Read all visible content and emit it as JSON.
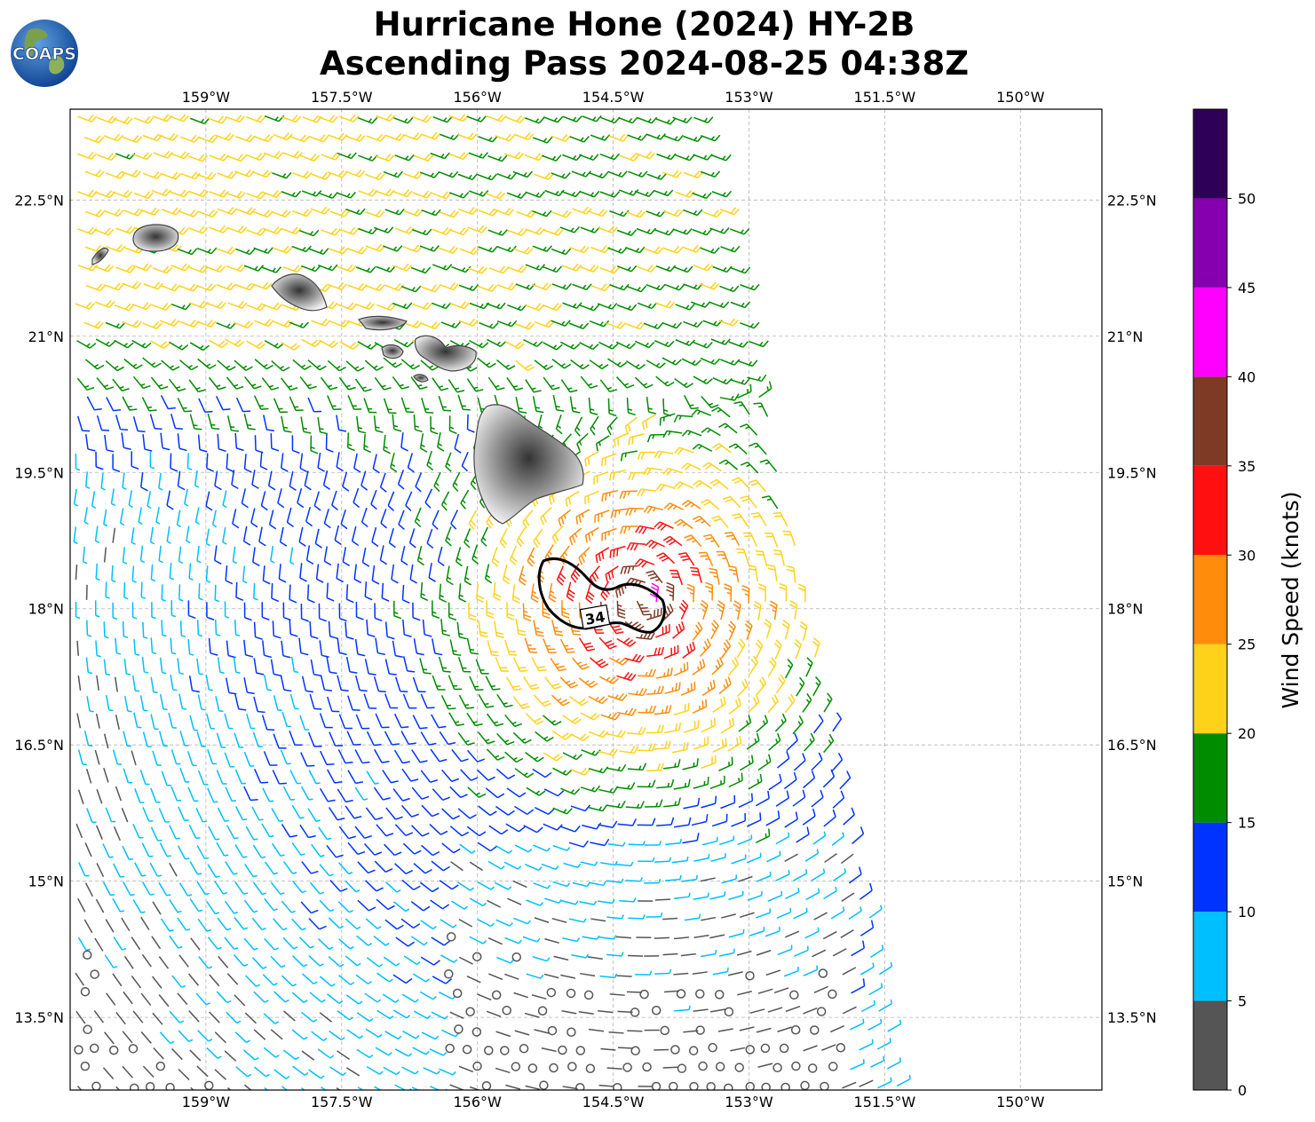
{
  "title": {
    "line1": "Hurricane Hone (2024) HY-2B",
    "line2": "Ascending Pass 2024-08-25 04:38Z"
  },
  "logo": {
    "text": "COAPS"
  },
  "map": {
    "lon_ticks": [
      "159°W",
      "157.5°W",
      "156°W",
      "154.5°W",
      "153°W",
      "151.5°W",
      "150°W"
    ],
    "lat_ticks": [
      "22.5°N",
      "21°N",
      "19.5°N",
      "18°N",
      "16.5°N",
      "15°N",
      "13.5°N"
    ],
    "lon_range": [
      -160.5,
      -149.1
    ],
    "lat_range": [
      12.7,
      23.5
    ],
    "storm_center": {
      "lon": -154.2,
      "lat": 18.1
    },
    "contour_label": "34",
    "gridlines": true
  },
  "colorbar": {
    "label": "Wind Speed (knots)",
    "ticks": [
      "0",
      "5",
      "10",
      "15",
      "20",
      "25",
      "30",
      "35",
      "40",
      "45",
      "50"
    ],
    "colors": [
      "#555555",
      "#00bfff",
      "#0033ff",
      "#008c00",
      "#ffd21a",
      "#ff8c0a",
      "#ff0f0f",
      "#7f3a26",
      "#ff00ff",
      "#8600b0",
      "#2f0058"
    ]
  },
  "colors": {
    "calm": "#555555",
    "storm_contour": "#000000",
    "grid": "#b4b4b4",
    "land_outline": "#444444"
  }
}
